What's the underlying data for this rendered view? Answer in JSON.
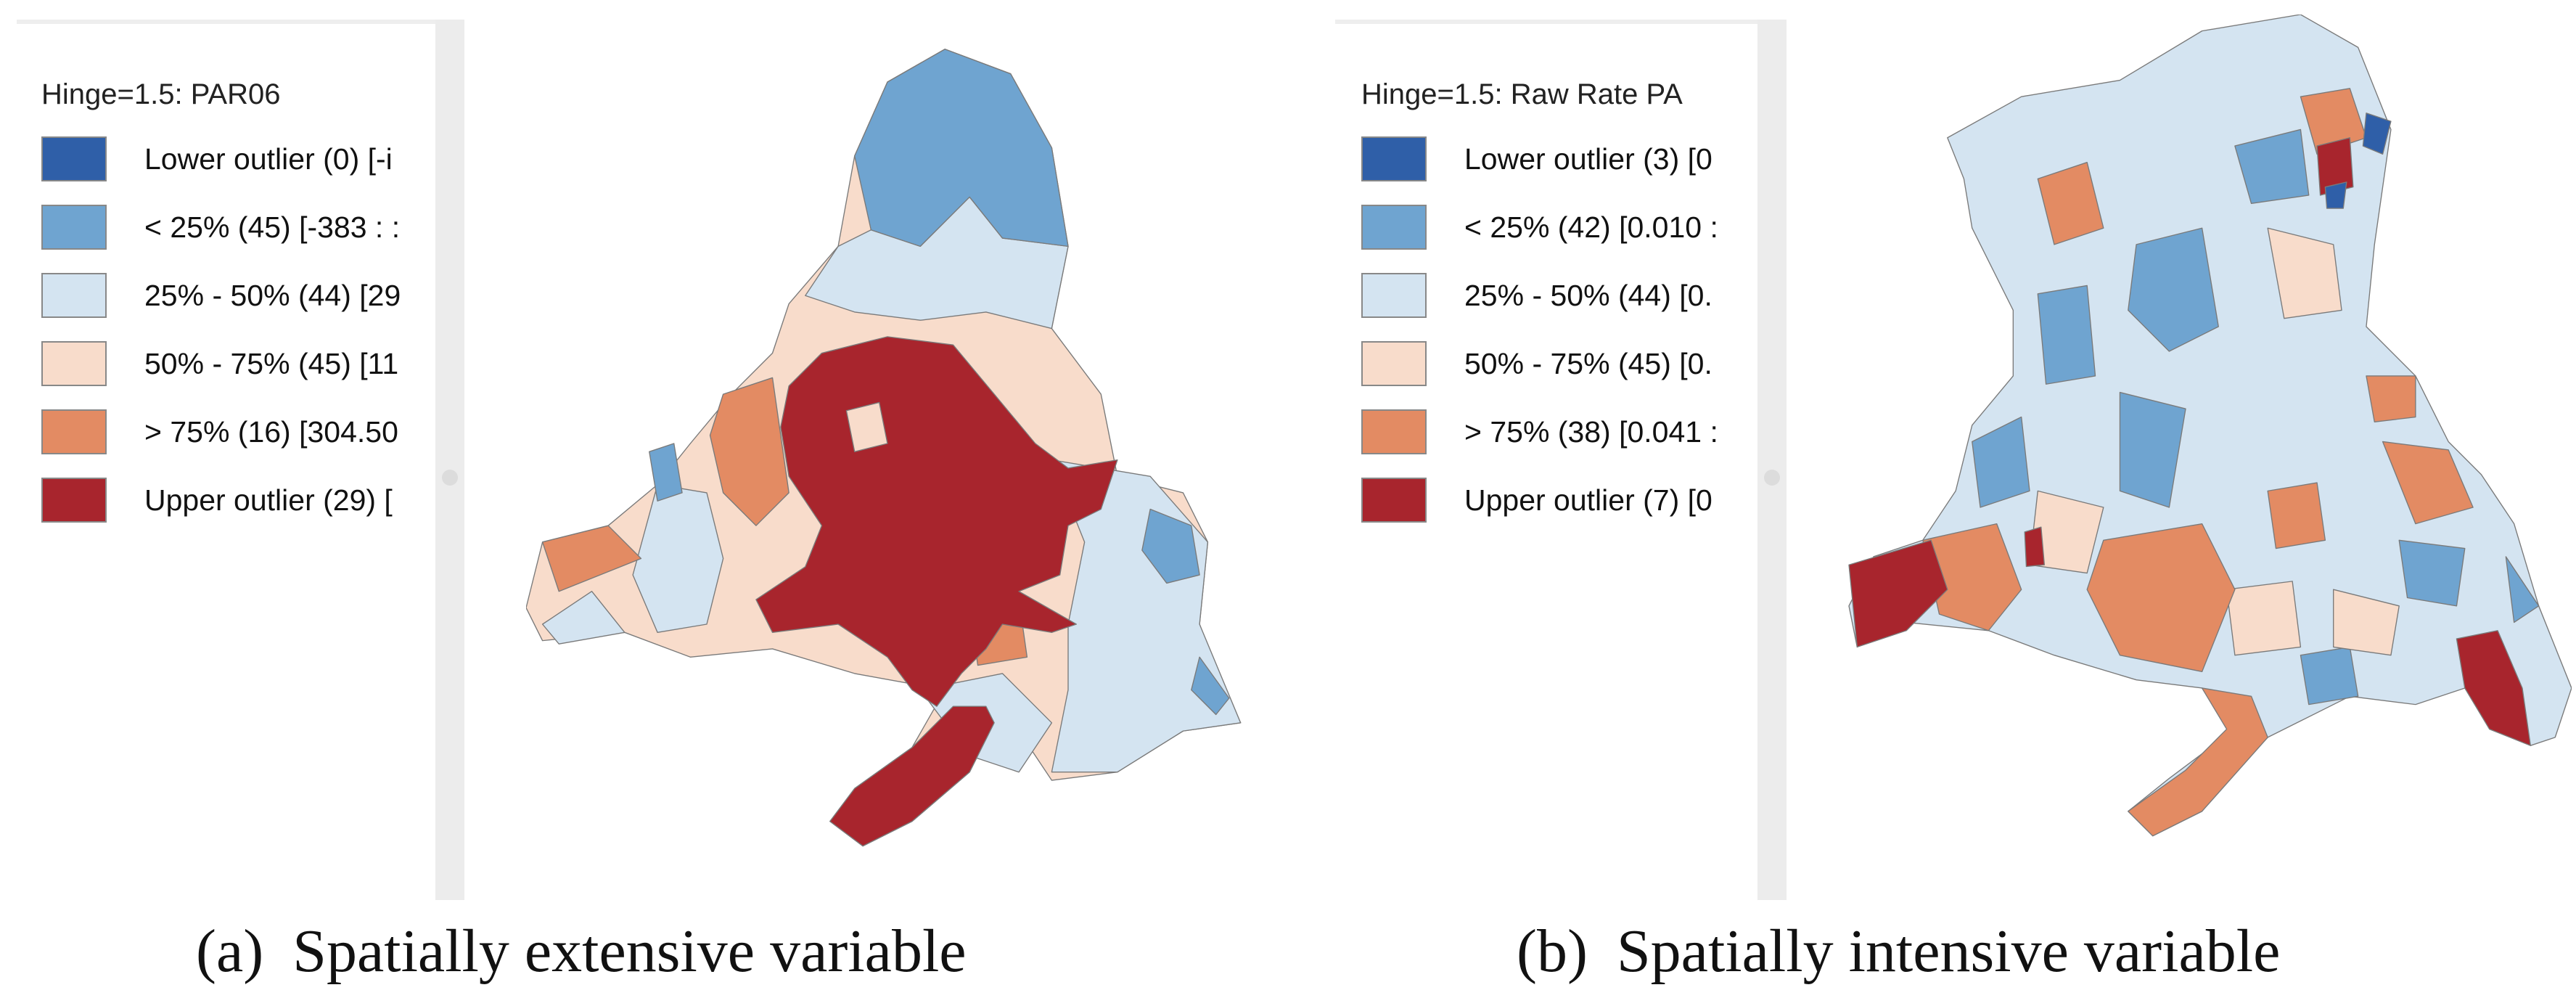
{
  "panels": [
    {
      "legend_title": "Hinge=1.5: PAR06",
      "legend": [
        {
          "label": "Lower outlier (0)  [-i",
          "color": "#2f5fa8"
        },
        {
          "label": "< 25% (45)  [-383 : :",
          "color": "#6fa4d0"
        },
        {
          "label": "25% - 50% (44)  [29",
          "color": "#d4e4f1"
        },
        {
          "label": "50% - 75% (45)  [11",
          "color": "#f8dccb"
        },
        {
          "label": "> 75% (16)  [304.50",
          "color": "#e38b63"
        },
        {
          "label": "Upper outlier (29)  [",
          "color": "#a8252d"
        }
      ],
      "caption_label": "(a)",
      "caption": "Spatially extensive variable"
    },
    {
      "legend_title": "Hinge=1.5: Raw Rate PA",
      "legend": [
        {
          "label": "Lower outlier (3)  [0",
          "color": "#2f5fa8"
        },
        {
          "label": "< 25% (42)  [0.010 :",
          "color": "#6fa4d0"
        },
        {
          "label": "25% - 50% (44)  [0.",
          "color": "#d4e4f1"
        },
        {
          "label": "50% - 75% (45)  [0.",
          "color": "#f8dccb"
        },
        {
          "label": "> 75% (38)  [0.041 :",
          "color": "#e38b63"
        },
        {
          "label": "Upper outlier (7)  [0",
          "color": "#a8252d"
        }
      ],
      "caption_label": "(b)",
      "caption": "Spatially intensive variable"
    }
  ]
}
